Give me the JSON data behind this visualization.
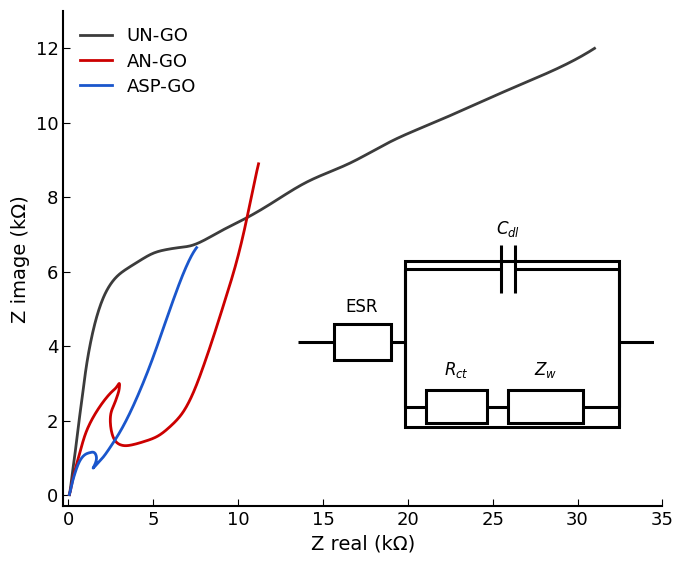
{
  "xlabel": "Z real (kΩ)",
  "ylabel": "Z image (kΩ)",
  "xlim": [
    -0.3,
    35
  ],
  "ylim": [
    -0.3,
    13
  ],
  "xticks": [
    0,
    5,
    10,
    15,
    20,
    25,
    30,
    35
  ],
  "yticks": [
    0,
    2,
    4,
    6,
    8,
    10,
    12
  ],
  "legend": [
    "UN-GO",
    "AN-GO",
    "ASP-GO"
  ],
  "colors": {
    "UN-GO": "#3c3c3c",
    "AN-GO": "#cc0000",
    "ASP-GO": "#1a56cc"
  },
  "linewidth": 2.0,
  "background_color": "#ffffff",
  "font_size": 14,
  "x_ungo": [
    0.05,
    0.08,
    0.12,
    0.2,
    0.35,
    0.55,
    0.8,
    1.0,
    1.3,
    1.7,
    2.2,
    2.8,
    3.5,
    4.2,
    5.0,
    5.8,
    6.5,
    7.2,
    8.0,
    9.0,
    10.5,
    12.0,
    14.0,
    16.5,
    19.0,
    21.5,
    24.0,
    26.5,
    29.0,
    31.0
  ],
  "y_ungo": [
    0.02,
    0.08,
    0.2,
    0.5,
    1.0,
    1.75,
    2.6,
    3.3,
    4.1,
    4.85,
    5.45,
    5.85,
    6.1,
    6.3,
    6.5,
    6.6,
    6.65,
    6.7,
    6.85,
    7.1,
    7.45,
    7.85,
    8.4,
    8.9,
    9.5,
    10.0,
    10.5,
    11.0,
    11.5,
    12.0
  ],
  "x_ango": [
    0.05,
    0.1,
    0.2,
    0.4,
    0.7,
    1.0,
    1.4,
    1.8,
    2.2,
    2.6,
    2.9,
    3.0,
    3.0,
    2.9,
    2.7,
    2.5,
    2.5,
    2.7,
    3.1,
    3.7,
    4.5,
    5.3,
    6.0,
    6.7,
    7.3,
    7.9,
    8.5,
    9.2,
    9.8,
    10.4,
    11.0,
    11.2
  ],
  "y_ango": [
    0.02,
    0.1,
    0.32,
    0.7,
    1.2,
    1.65,
    2.05,
    2.35,
    2.6,
    2.8,
    2.95,
    3.0,
    2.9,
    2.7,
    2.45,
    2.2,
    1.8,
    1.5,
    1.35,
    1.35,
    1.45,
    1.6,
    1.85,
    2.2,
    2.7,
    3.4,
    4.2,
    5.2,
    6.1,
    7.2,
    8.5,
    8.9
  ],
  "x_aspgo": [
    0.05,
    0.1,
    0.2,
    0.4,
    0.7,
    1.0,
    1.3,
    1.5,
    1.6,
    1.65,
    1.6,
    1.5,
    1.45,
    1.5,
    1.7,
    2.0,
    2.4,
    2.9,
    3.5,
    4.2,
    4.9,
    5.6,
    6.3,
    7.0,
    7.4,
    7.55
  ],
  "y_aspgo": [
    0.02,
    0.1,
    0.3,
    0.62,
    0.95,
    1.1,
    1.15,
    1.15,
    1.1,
    1.0,
    0.88,
    0.78,
    0.73,
    0.75,
    0.85,
    1.0,
    1.25,
    1.6,
    2.1,
    2.8,
    3.6,
    4.5,
    5.4,
    6.2,
    6.55,
    6.65
  ]
}
